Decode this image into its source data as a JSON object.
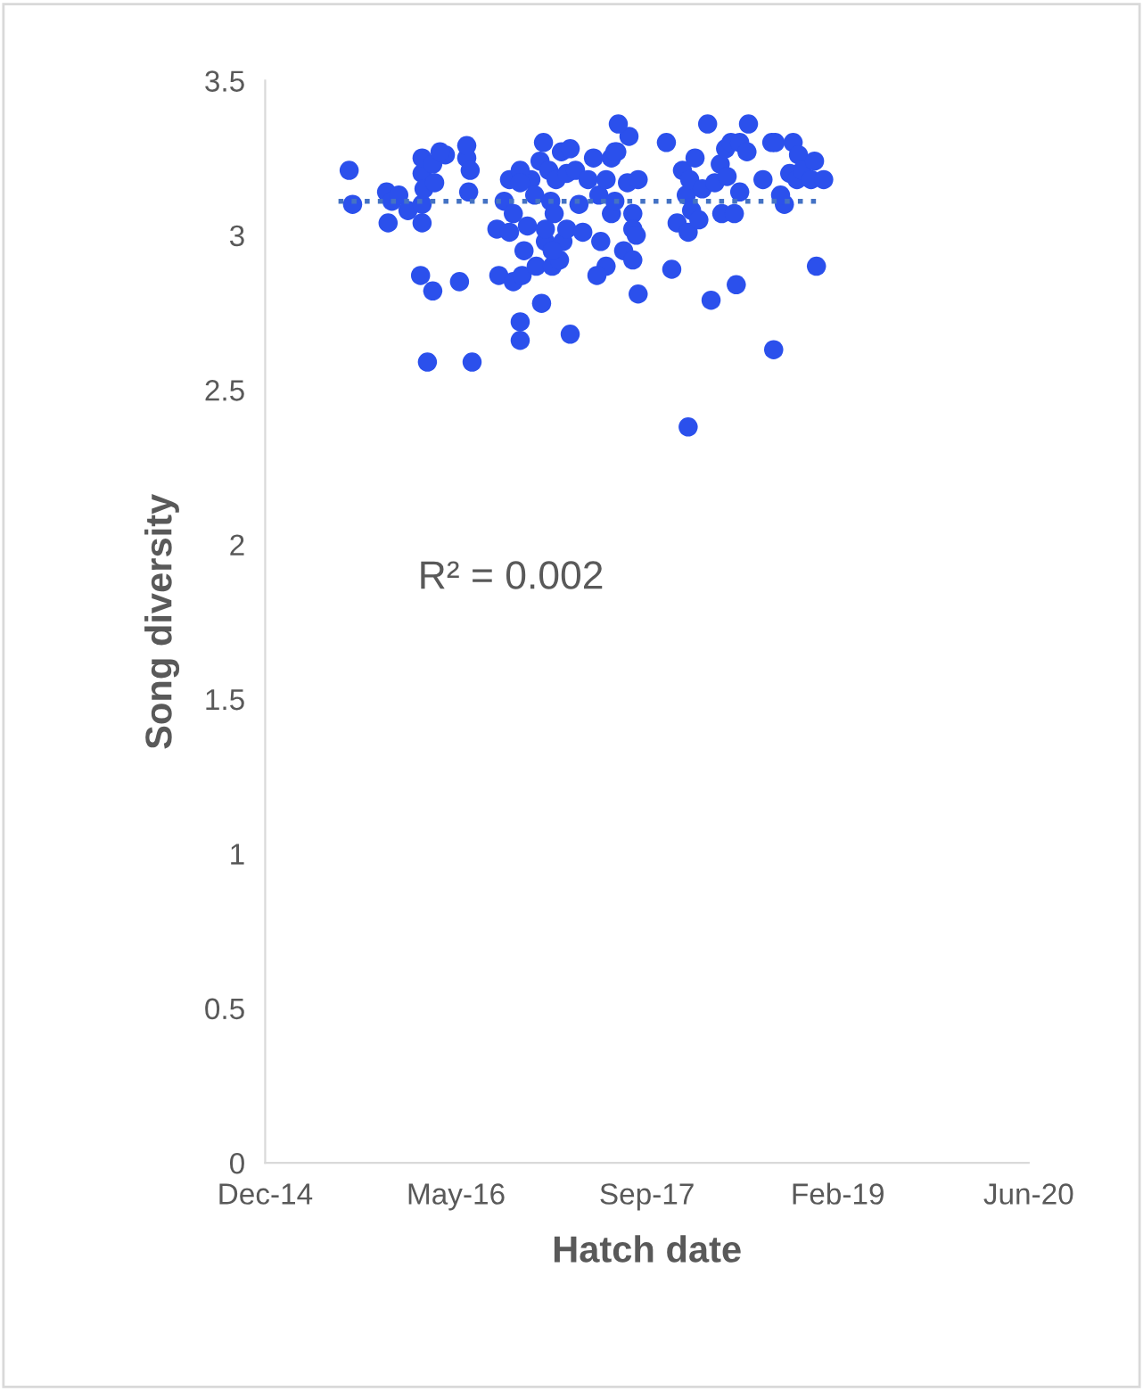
{
  "chart_data": {
    "type": "scatter",
    "xlabel": "Hatch date",
    "ylabel": "Song diversity",
    "xlim": [
      "2014-12-27",
      "2020-06-18"
    ],
    "xticks": [
      {
        "value": "2014-12-27",
        "label": "Dec-14"
      },
      {
        "value": "2016-05-10",
        "label": "May-16"
      },
      {
        "value": "2017-09-22",
        "label": "Sep-17"
      },
      {
        "value": "2019-02-04",
        "label": "Feb-19"
      },
      {
        "value": "2020-06-18",
        "label": "Jun-20"
      }
    ],
    "ylim": [
      0,
      3.5
    ],
    "yticks": [
      0,
      0.5,
      1,
      1.5,
      2,
      2.5,
      3,
      3.5
    ],
    "grid": false,
    "legend": false,
    "marker": "circle",
    "annotations": [
      "R² = 0.002"
    ],
    "series": [
      {
        "color": "#2b50ec",
        "x": [
          "2015-08-04",
          "2015-08-13",
          "2015-11-10",
          "2015-11-24",
          "2015-12-12",
          "2015-11-14",
          "2016-01-05",
          "2016-02-11",
          "2016-02-11",
          "2016-02-11",
          "2016-02-11",
          "2016-02-16",
          "2016-03-10",
          "2016-03-15",
          "2016-02-07",
          "2016-03-10",
          "2016-05-19",
          "2016-02-25",
          "2016-06-21",
          "2016-06-07",
          "2016-06-07",
          "2016-06-12",
          "2016-06-16",
          "2016-04-12",
          "2016-03-29",
          "2016-08-30",
          "2016-08-25",
          "2016-09-27",
          "2016-09-27",
          "2016-10-07",
          "2016-10-25",
          "2016-10-30",
          "2016-10-25",
          "2016-11-04",
          "2016-11-13",
          "2016-11-22",
          "2016-12-02",
          "2016-12-16",
          "2016-12-25",
          "2017-01-08",
          "2017-01-13",
          "2017-01-22",
          "2017-01-27",
          "2017-02-10",
          "2017-02-24",
          "2017-03-05",
          "2017-03-19",
          "2016-12-30",
          "2016-12-20",
          "2016-12-06",
          "2017-01-17",
          "2017-02-05",
          "2017-02-14",
          "2017-02-24",
          "2017-03-05",
          "2017-01-17",
          "2016-12-30",
          "2016-10-25",
          "2016-10-25",
          "2016-09-13",
          "2016-10-07",
          "2017-03-28",
          "2017-04-07",
          "2017-04-21",
          "2017-05-05",
          "2017-05-19",
          "2017-06-07",
          "2017-06-21",
          "2017-06-07",
          "2017-06-30",
          "2017-05-14",
          "2017-05-24",
          "2017-06-21",
          "2017-07-05",
          "2017-08-02",
          "2017-08-16",
          "2017-08-16",
          "2017-07-23",
          "2017-08-16",
          "2017-08-25",
          "2017-08-30",
          "2017-08-30",
          "2017-06-30",
          "2017-08-06",
          "2017-07-09",
          "2017-11-12",
          "2017-11-26",
          "2017-12-10",
          "2017-12-24",
          "2018-01-03",
          "2018-01-08",
          "2018-01-12",
          "2018-01-17",
          "2018-01-08",
          "2018-01-26",
          "2018-02-14",
          "2018-02-05",
          "2018-02-28",
          "2018-03-09",
          "2018-03-19",
          "2018-04-02",
          "2018-04-06",
          "2018-04-16",
          "2018-04-20",
          "2018-04-30",
          "2018-05-09",
          "2018-05-14",
          "2018-05-23",
          "2018-05-23",
          "2018-07-23",
          "2018-08-15",
          "2018-08-24",
          "2018-08-20",
          "2018-09-17",
          "2018-10-01",
          "2018-10-10",
          "2018-10-20",
          "2018-10-24",
          "2018-11-03",
          "2018-11-26",
          "2018-12-05",
          "2018-12-10",
          "2018-12-29",
          "2018-09-07",
          "2018-06-11",
          "2018-06-15"
        ],
        "values": [
          3.21,
          3.1,
          3.14,
          3.11,
          3.13,
          3.04,
          3.08,
          3.2,
          3.1,
          3.04,
          3.25,
          3.15,
          3.23,
          3.17,
          2.87,
          2.82,
          2.85,
          2.59,
          2.59,
          3.25,
          3.29,
          3.14,
          3.21,
          3.26,
          3.27,
          2.87,
          3.02,
          3.18,
          3.01,
          2.85,
          2.72,
          2.87,
          2.66,
          2.95,
          3.03,
          3.18,
          3.13,
          3.24,
          3.3,
          3.21,
          3.11,
          3.07,
          3.18,
          3.27,
          3.2,
          3.28,
          3.21,
          2.98,
          2.78,
          2.9,
          2.9,
          2.92,
          2.98,
          3.02,
          2.68,
          2.95,
          3.02,
          3.21,
          3.17,
          3.11,
          3.07,
          3.1,
          3.01,
          3.18,
          3.25,
          3.13,
          3.18,
          3.07,
          2.9,
          3.11,
          2.87,
          2.98,
          3.25,
          3.27,
          3.17,
          3.07,
          3.02,
          2.95,
          2.92,
          3.0,
          3.18,
          2.81,
          3.27,
          3.32,
          3.36,
          3.3,
          2.89,
          3.04,
          3.21,
          3.13,
          3.01,
          3.18,
          3.08,
          2.38,
          3.25,
          3.15,
          3.05,
          3.36,
          2.79,
          3.17,
          3.23,
          3.07,
          3.28,
          3.19,
          3.3,
          3.07,
          2.84,
          3.14,
          3.3,
          3.18,
          3.3,
          3.3,
          2.63,
          3.1,
          3.2,
          3.3,
          3.18,
          3.26,
          3.21,
          3.18,
          3.24,
          2.9,
          3.18,
          3.13,
          3.27,
          3.36
        ]
      },
      {
        "type": "line",
        "color": "#4472c4",
        "line_style": "dotted",
        "marker": "none",
        "x": [
          "2015-07-07",
          "2018-12-29"
        ],
        "values": [
          3.11,
          3.11
        ]
      }
    ]
  }
}
